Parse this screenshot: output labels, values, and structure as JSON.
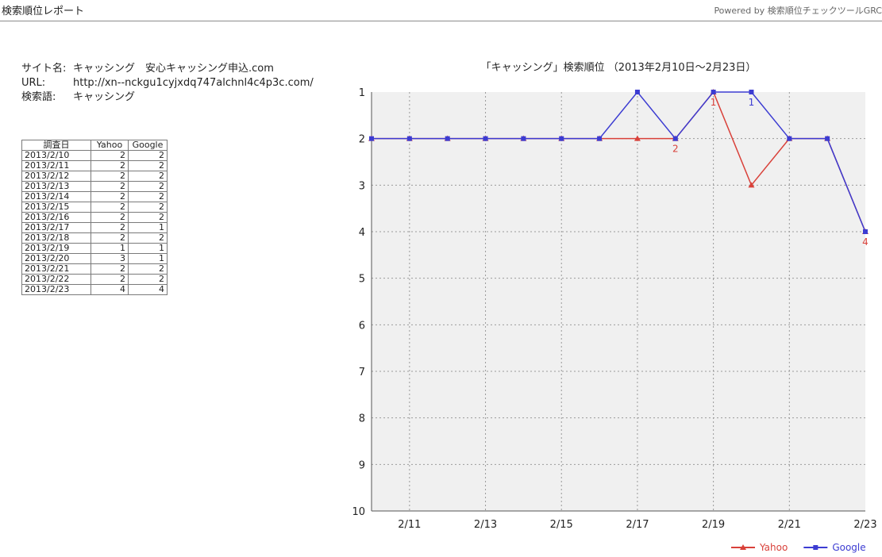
{
  "header": {
    "title": "検索順位レポート",
    "powered_by": "Powered by 検索順位チェックツールGRC"
  },
  "site": {
    "name_label": "サイト名:",
    "name_value": "キャッシング　安心キャッシング申込.com",
    "url_label": "URL:",
    "url_value": "http://xn--nckgu1cyjxdq747alchnl4c4p3c.com/",
    "keyword_label": "検索語:",
    "keyword_value": "キャッシング"
  },
  "table": {
    "headers": [
      "調査日",
      "Yahoo",
      "Google"
    ],
    "rows": [
      [
        "2013/2/10",
        "2",
        "2"
      ],
      [
        "2013/2/11",
        "2",
        "2"
      ],
      [
        "2013/2/12",
        "2",
        "2"
      ],
      [
        "2013/2/13",
        "2",
        "2"
      ],
      [
        "2013/2/14",
        "2",
        "2"
      ],
      [
        "2013/2/15",
        "2",
        "2"
      ],
      [
        "2013/2/16",
        "2",
        "2"
      ],
      [
        "2013/2/17",
        "2",
        "1"
      ],
      [
        "2013/2/18",
        "2",
        "2"
      ],
      [
        "2013/2/19",
        "1",
        "1"
      ],
      [
        "2013/2/20",
        "3",
        "1"
      ],
      [
        "2013/2/21",
        "2",
        "2"
      ],
      [
        "2013/2/22",
        "2",
        "2"
      ],
      [
        "2013/2/23",
        "4",
        "4"
      ]
    ]
  },
  "chart_data": {
    "type": "line",
    "title": "「キャッシング」検索順位 （2013年2月10日〜2月23日）",
    "x": [
      "2/10",
      "2/11",
      "2/12",
      "2/13",
      "2/14",
      "2/15",
      "2/16",
      "2/17",
      "2/18",
      "2/19",
      "2/20",
      "2/21",
      "2/22",
      "2/23"
    ],
    "x_tick_labels": [
      "2/11",
      "2/13",
      "2/15",
      "2/17",
      "2/19",
      "2/21",
      "2/23"
    ],
    "y_tick_labels": [
      "1",
      "2",
      "3",
      "4",
      "5",
      "6",
      "7",
      "8",
      "9",
      "10"
    ],
    "ylim": [
      1,
      10
    ],
    "y_inverted": true,
    "grid": true,
    "legend_position": "bottom-right",
    "series": [
      {
        "name": "Yahoo",
        "color": "#d9413a",
        "marker": "triangle",
        "values": [
          2,
          2,
          2,
          2,
          2,
          2,
          2,
          2,
          2,
          1,
          3,
          2,
          2,
          4
        ],
        "point_labels": [
          null,
          null,
          null,
          null,
          null,
          null,
          null,
          null,
          "2",
          "1",
          null,
          null,
          null,
          "4"
        ]
      },
      {
        "name": "Google",
        "color": "#3c3cd2",
        "marker": "square",
        "values": [
          2,
          2,
          2,
          2,
          2,
          2,
          2,
          1,
          2,
          1,
          1,
          2,
          2,
          4
        ],
        "point_labels": [
          null,
          null,
          null,
          null,
          null,
          null,
          null,
          null,
          null,
          null,
          "1",
          null,
          null,
          null
        ]
      }
    ]
  }
}
